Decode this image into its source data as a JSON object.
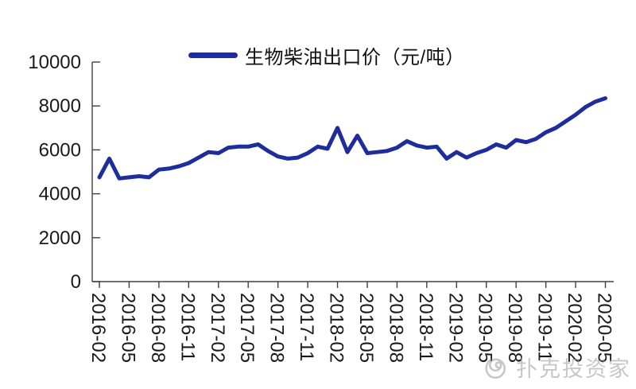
{
  "legend": {
    "label": "生物柴油出口价（元/吨）"
  },
  "watermark": {
    "text": "扑克投资家",
    "icon": "spiral-logo"
  },
  "colors": {
    "line": "#1F2D9C",
    "axis": "#404040",
    "tick_label": "#1a1a1a",
    "watermark": "#9a9a9a",
    "background": "#ffffff"
  },
  "chart_data": {
    "type": "line",
    "title": "",
    "legend": "生物柴油出口价（元/吨）",
    "legend_position": "top-center",
    "grid": false,
    "ylim": [
      0,
      10000
    ],
    "y_ticks": [
      0,
      2000,
      4000,
      6000,
      8000,
      10000
    ],
    "x": [
      "2016-02",
      "2016-03",
      "2016-04",
      "2016-05",
      "2016-06",
      "2016-07",
      "2016-08",
      "2016-09",
      "2016-10",
      "2016-11",
      "2016-12",
      "2017-01",
      "2017-02",
      "2017-03",
      "2017-04",
      "2017-05",
      "2017-06",
      "2017-07",
      "2017-08",
      "2017-09",
      "2017-10",
      "2017-11",
      "2017-12",
      "2018-01",
      "2018-02",
      "2018-03",
      "2018-04",
      "2018-05",
      "2018-06",
      "2018-07",
      "2018-08",
      "2018-09",
      "2018-10",
      "2018-11",
      "2018-12",
      "2019-01",
      "2019-02",
      "2019-03",
      "2019-04",
      "2019-05",
      "2019-06",
      "2019-07",
      "2019-08",
      "2019-09",
      "2019-10",
      "2019-11",
      "2019-12",
      "2020-01",
      "2020-02",
      "2020-03",
      "2020-04",
      "2020-05"
    ],
    "values": [
      4750,
      5600,
      4700,
      4750,
      4800,
      4750,
      5100,
      5150,
      5250,
      5400,
      5650,
      5900,
      5850,
      6100,
      6150,
      6150,
      6250,
      5950,
      5700,
      5600,
      5650,
      5850,
      6150,
      6050,
      7000,
      5900,
      6650,
      5850,
      5900,
      5950,
      6100,
      6400,
      6200,
      6100,
      6150,
      5600,
      5900,
      5650,
      5850,
      6000,
      6250,
      6100,
      6450,
      6350,
      6500,
      6800,
      7000,
      7300,
      7600,
      7950,
      8200,
      8350
    ],
    "x_tick_labels": [
      "2016-02",
      "2016-05",
      "2016-08",
      "2016-11",
      "2017-02",
      "2017-05",
      "2017-08",
      "2017-11",
      "2018-02",
      "2018-05",
      "2018-08",
      "2018-11",
      "2019-02",
      "2019-05",
      "2019-08",
      "2019-11",
      "2020-02",
      "2020-05"
    ],
    "x_tick_every": 3
  }
}
